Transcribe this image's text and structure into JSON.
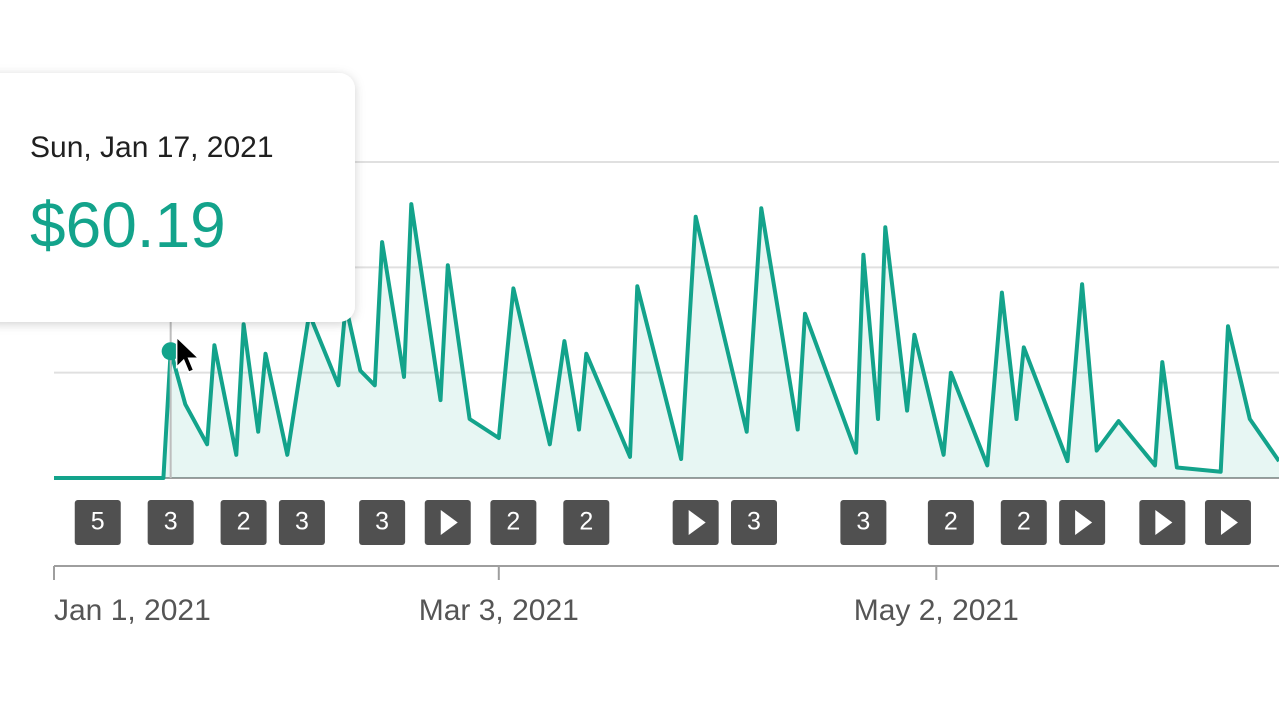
{
  "chart_data": {
    "type": "line",
    "x": [
      "2021-01-01",
      "2021-01-16",
      "2021-01-17",
      "2021-01-19",
      "2021-01-22",
      "2021-01-23",
      "2021-01-26",
      "2021-01-27",
      "2021-01-29",
      "2021-01-30",
      "2021-02-02",
      "2021-02-05",
      "2021-02-09",
      "2021-02-10",
      "2021-02-12",
      "2021-02-14",
      "2021-02-15",
      "2021-02-18",
      "2021-02-19",
      "2021-02-23",
      "2021-02-24",
      "2021-02-27",
      "2021-03-03",
      "2021-03-05",
      "2021-03-10",
      "2021-03-12",
      "2021-03-14",
      "2021-03-15",
      "2021-03-21",
      "2021-03-22",
      "2021-03-28",
      "2021-03-30",
      "2021-04-06",
      "2021-04-08",
      "2021-04-13",
      "2021-04-14",
      "2021-04-21",
      "2021-04-22",
      "2021-04-24",
      "2021-04-25",
      "2021-04-28",
      "2021-04-29",
      "2021-05-03",
      "2021-05-04",
      "2021-05-09",
      "2021-05-11",
      "2021-05-13",
      "2021-05-14",
      "2021-05-20",
      "2021-05-22",
      "2021-05-24",
      "2021-05-27",
      "2021-06-01",
      "2021-06-02",
      "2021-06-04",
      "2021-06-10",
      "2021-06-11",
      "2021-06-14",
      "2021-06-18"
    ],
    "series": [
      {
        "color": "#13a38b",
        "values": [
          0,
          0,
          60.19,
          35,
          16,
          63,
          11,
          73,
          22,
          59,
          11,
          78,
          44,
          82,
          51,
          44,
          112,
          48,
          130,
          37,
          101,
          28,
          19,
          90,
          16,
          65,
          23,
          59,
          10,
          91,
          9,
          124,
          22,
          128,
          23,
          78,
          12,
          106,
          28,
          119,
          32,
          68,
          11,
          50,
          6,
          88,
          28,
          62,
          8,
          92,
          13,
          27,
          6,
          55,
          5,
          3,
          72,
          28,
          8
        ]
      }
    ],
    "xlim": [
      "2021-01-01",
      "2021-06-18"
    ],
    "xticks": [
      {
        "value": "2021-01-01",
        "label": "Jan 1, 2021"
      },
      {
        "value": "2021-03-03",
        "label": "Mar 3, 2021"
      },
      {
        "value": "2021-05-02",
        "label": "May 2, 2021"
      }
    ],
    "ylim": [
      0,
      150
    ],
    "yticks": [
      0,
      50,
      100,
      150
    ],
    "grid": true,
    "tooltip": {
      "x_label": "Sun, Jan 17, 2021",
      "value_label": "$60.19",
      "point": 2
    },
    "markers": [
      {
        "x": "2021-01-07",
        "count": 5
      },
      {
        "x": "2021-01-17",
        "count": 3
      },
      {
        "x": "2021-01-27",
        "count": 2
      },
      {
        "x": "2021-02-04",
        "count": 3
      },
      {
        "x": "2021-02-15",
        "count": 3
      },
      {
        "x": "2021-02-24",
        "kind": "video"
      },
      {
        "x": "2021-03-05",
        "count": 2
      },
      {
        "x": "2021-03-15",
        "count": 2
      },
      {
        "x": "2021-03-30",
        "kind": "video"
      },
      {
        "x": "2021-04-07",
        "count": 3
      },
      {
        "x": "2021-04-22",
        "count": 3
      },
      {
        "x": "2021-05-04",
        "count": 2
      },
      {
        "x": "2021-05-14",
        "count": 2
      },
      {
        "x": "2021-05-22",
        "kind": "video"
      },
      {
        "x": "2021-06-02",
        "kind": "video"
      },
      {
        "x": "2021-06-11",
        "kind": "video"
      }
    ]
  }
}
